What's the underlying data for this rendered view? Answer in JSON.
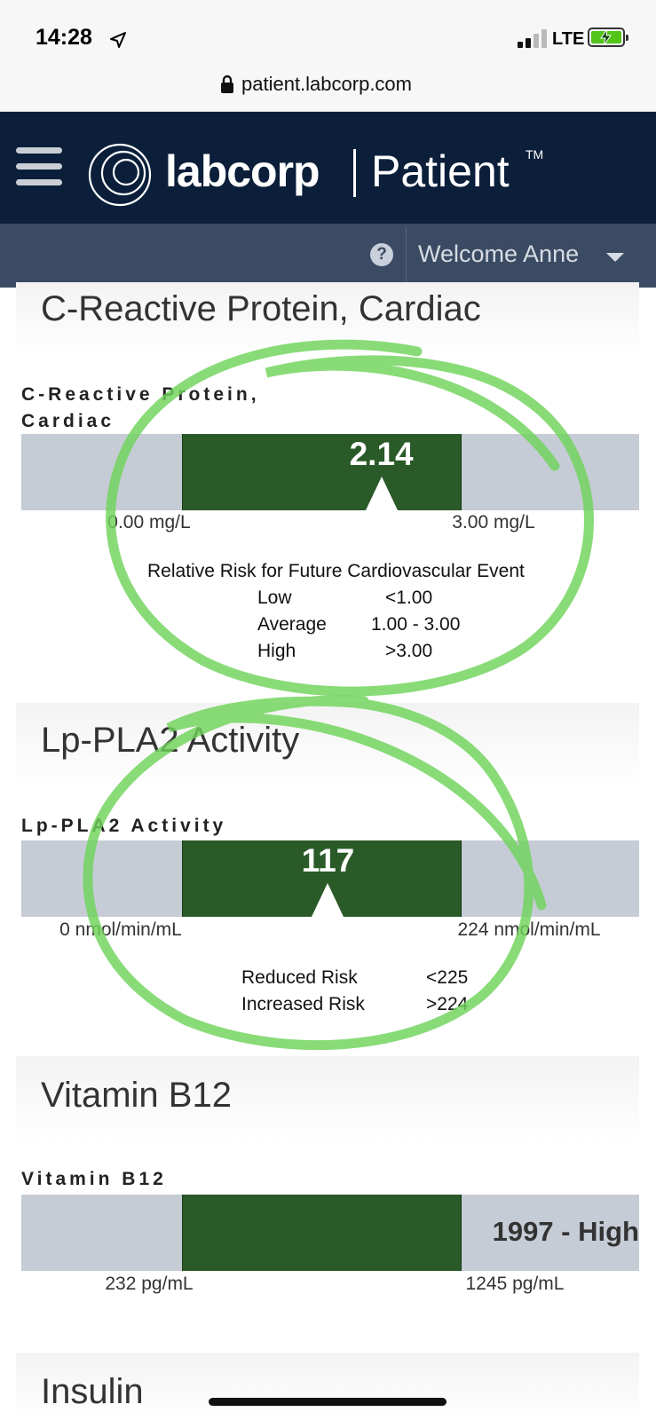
{
  "status_bar": {
    "time": "14:28",
    "network": "LTE"
  },
  "browser": {
    "url": "patient.labcorp.com"
  },
  "header": {
    "brand": "labcorp",
    "product": "Patient",
    "trademark": "TM"
  },
  "sub_nav": {
    "help_glyph": "?",
    "welcome": "Welcome Anne"
  },
  "results": [
    {
      "title": "C-Reactive Protein, Cardiac",
      "label_line1": "C-Reactive Protein,",
      "label_line2": "Cardiac",
      "value": "2.14",
      "range_low": "0.00 mg/L",
      "range_high": "3.00 mg/L",
      "marker_fraction": 0.713,
      "notes": {
        "heading": "Relative Risk for Future Cardiovascular Event",
        "rows": [
          {
            "label": "Low",
            "value": "<1.00"
          },
          {
            "label": "Average",
            "value": "1.00 - 3.00"
          },
          {
            "label": "High",
            "value": ">3.00"
          }
        ]
      }
    },
    {
      "title": "Lp-PLA2 Activity",
      "label_line1": "Lp-PLA2 Activity",
      "value": "117",
      "range_low": "0 nmol/min/mL",
      "range_high": "224 nmol/min/mL",
      "marker_fraction": 0.522,
      "notes": {
        "rows": [
          {
            "label": "Reduced Risk",
            "value": "<225"
          },
          {
            "label": "Increased Risk",
            "value": ">224"
          }
        ]
      }
    },
    {
      "title": "Vitamin B12",
      "label_line1": "Vitamin B12",
      "value": "1997 - High",
      "range_low": "232 pg/mL",
      "range_high": "1245 pg/mL"
    },
    {
      "title": "Insulin"
    }
  ],
  "colors": {
    "header": "#0b1f3a",
    "sub_nav": "#3b4b63",
    "in_range": "#2a5a28",
    "out_range": "#c6ccd6",
    "annotation": "#6fd35a"
  }
}
